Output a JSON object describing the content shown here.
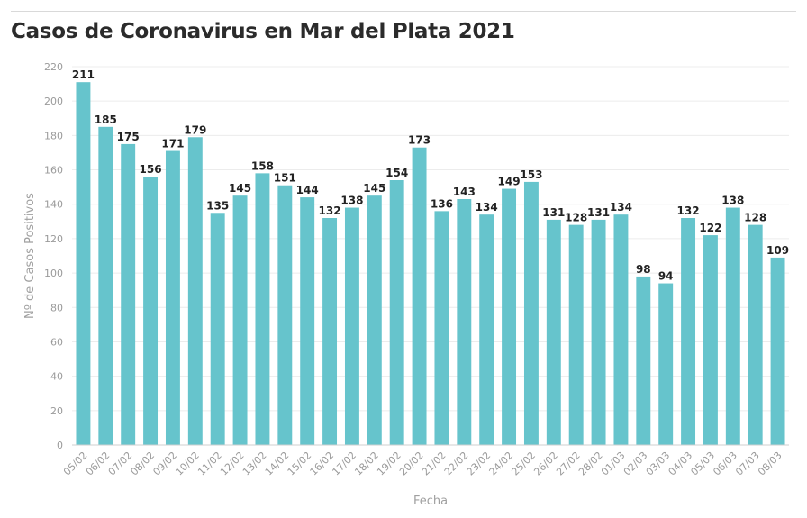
{
  "chart_data": {
    "type": "bar",
    "title": "Casos de Coronavirus en Mar del Plata 2021",
    "xlabel": "Fecha",
    "ylabel": "Nº de Casos Positivos",
    "ylim": [
      0,
      220
    ],
    "yticks": [
      0,
      20,
      40,
      60,
      80,
      100,
      120,
      140,
      160,
      180,
      200,
      220
    ],
    "grid": true,
    "bar_color": "#66c4cc",
    "categories": [
      "05/02",
      "06/02",
      "07/02",
      "08/02",
      "09/02",
      "10/02",
      "11/02",
      "12/02",
      "13/02",
      "14/02",
      "15/02",
      "16/02",
      "17/02",
      "18/02",
      "19/02",
      "20/02",
      "21/02",
      "22/02",
      "23/02",
      "24/02",
      "25/02",
      "26/02",
      "27/02",
      "28/02",
      "01/03",
      "02/03",
      "03/03",
      "04/03",
      "05/03",
      "06/03",
      "07/03",
      "08/03"
    ],
    "values": [
      211,
      185,
      175,
      156,
      171,
      179,
      135,
      145,
      158,
      151,
      144,
      132,
      138,
      145,
      154,
      173,
      136,
      143,
      134,
      149,
      153,
      131,
      128,
      131,
      134,
      98,
      94,
      132,
      122,
      138,
      128,
      109
    ]
  }
}
